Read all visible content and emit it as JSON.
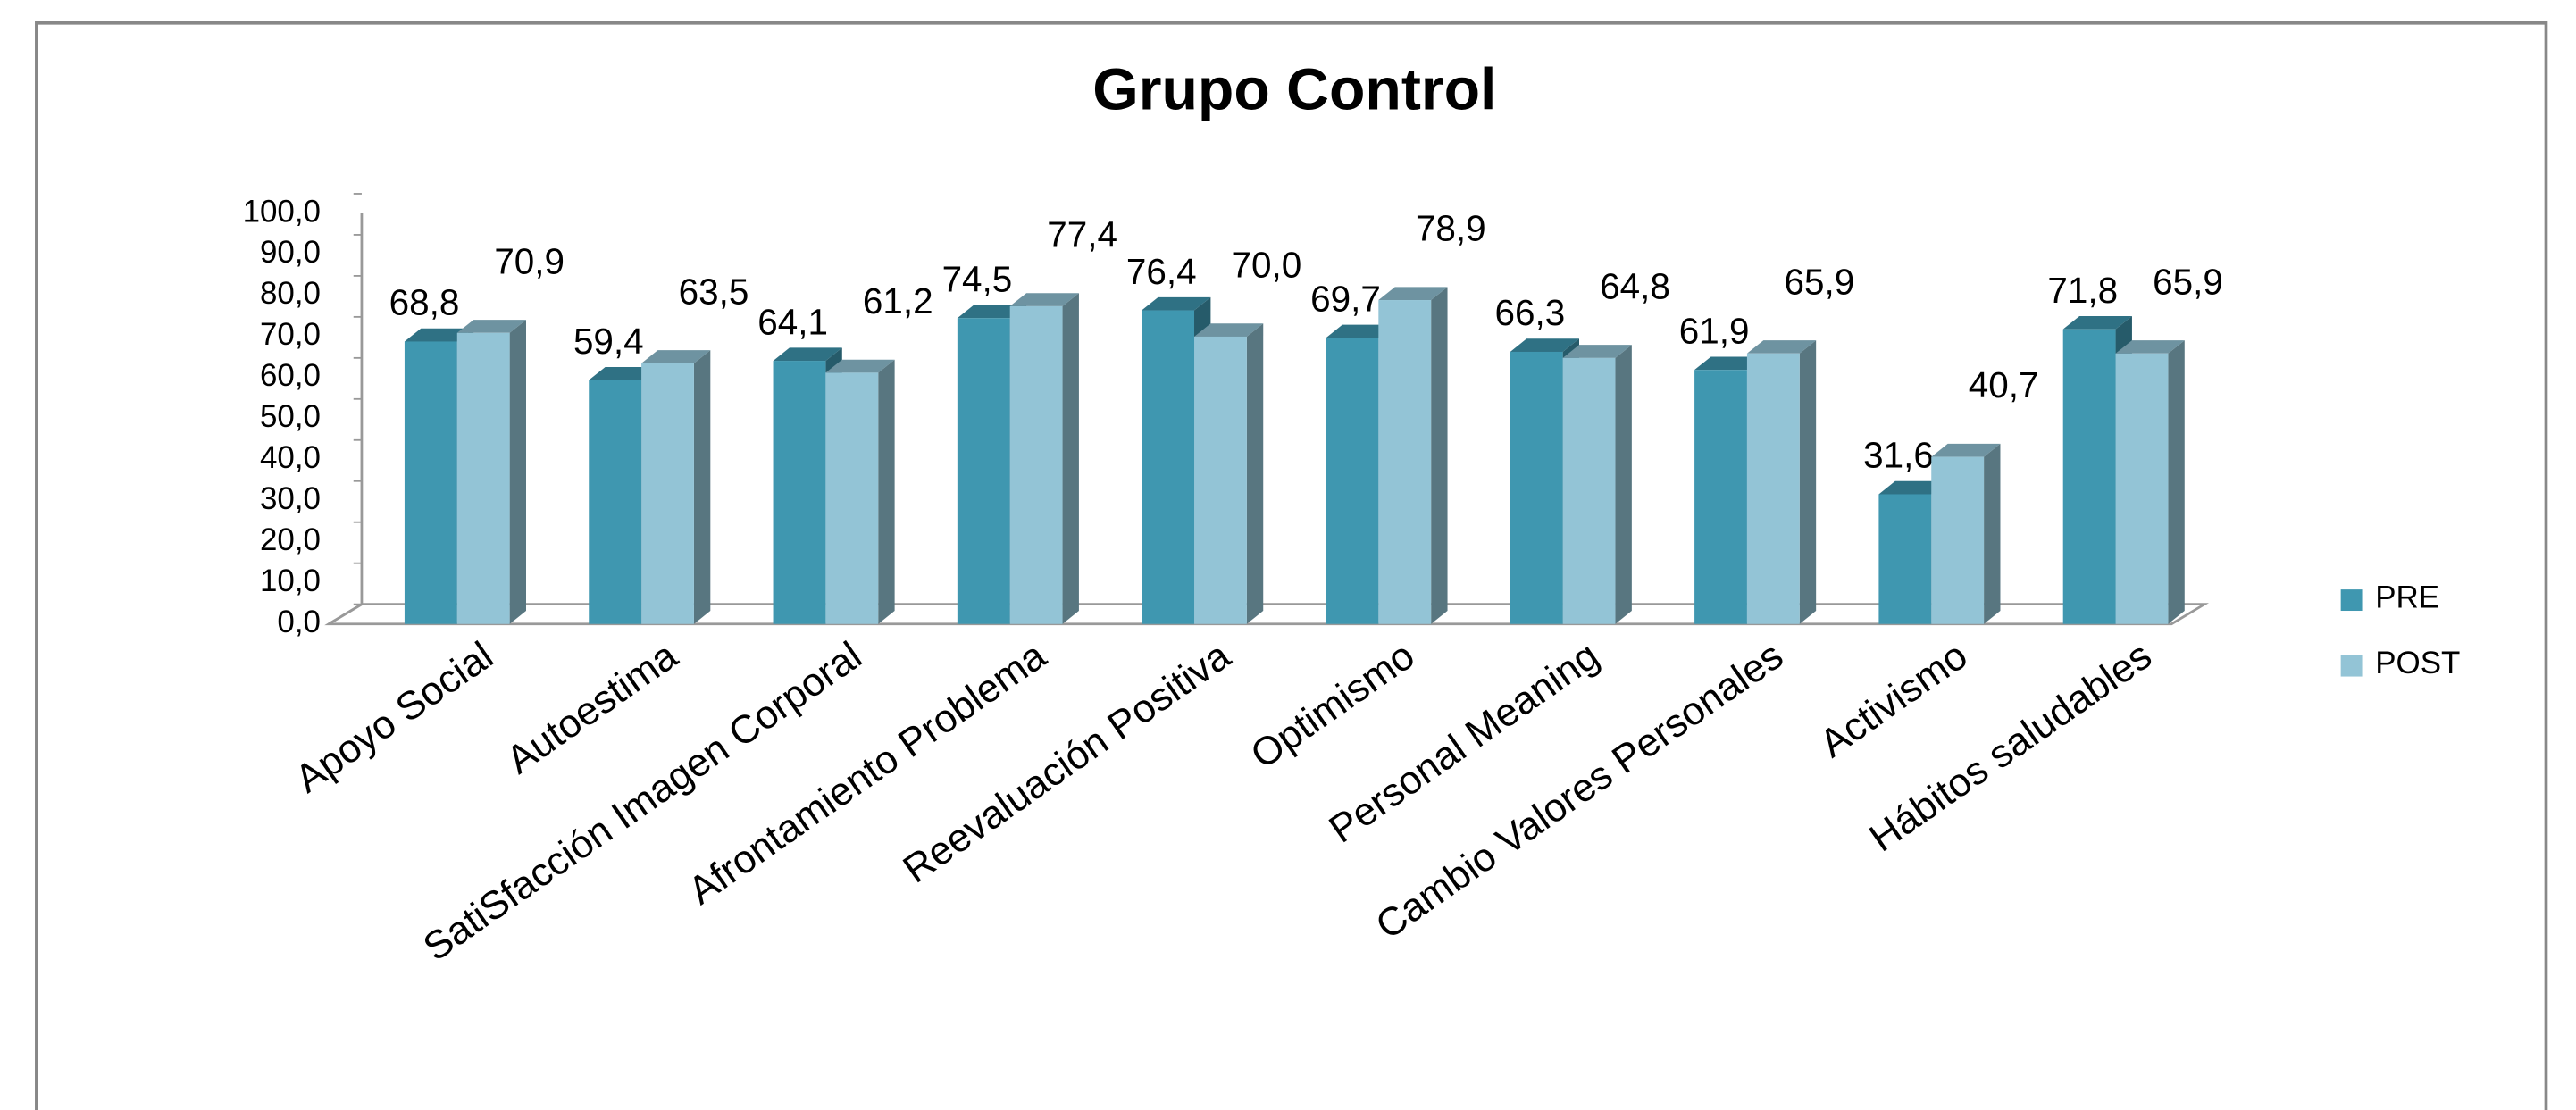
{
  "chart_data": {
    "type": "bar3d",
    "title": "Grupo Control",
    "categories": [
      "Apoyo Social",
      "Autoestima",
      "SatiSfacción Imagen Corporal",
      "Afrontamiento Problema",
      "Reevaluación Positiva",
      "Optimismo",
      "Personal Meaning",
      "Cambio Valores Personales",
      "Activismo",
      "Hábitos saludables"
    ],
    "series": [
      {
        "name": "PRE",
        "color": "#3f97b0",
        "values": [
          68.8,
          59.4,
          64.1,
          74.5,
          76.4,
          69.7,
          66.3,
          61.9,
          31.6,
          71.8
        ],
        "value_labels": [
          "68,8",
          "59,4",
          "64,1",
          "74,5",
          "76,4",
          "69,7",
          "66,3",
          "61,9",
          "31,6",
          "71,8"
        ]
      },
      {
        "name": "POST",
        "color": "#93c4d6",
        "values": [
          70.9,
          63.5,
          61.2,
          77.4,
          70.0,
          78.9,
          64.8,
          65.9,
          40.7,
          65.9
        ],
        "value_labels": [
          "70,9",
          "63,5",
          "61,2",
          "77,4",
          "70,0",
          "78,9",
          "64,8",
          "65,9",
          "40,7",
          "65,9"
        ]
      }
    ],
    "ylim": [
      0,
      100
    ],
    "yticks": [
      {
        "value": 0,
        "label": "0,0"
      },
      {
        "value": 10,
        "label": "10,0"
      },
      {
        "value": 20,
        "label": "20,0"
      },
      {
        "value": 30,
        "label": "30,0"
      },
      {
        "value": 40,
        "label": "40,0"
      },
      {
        "value": 50,
        "label": "50,0"
      },
      {
        "value": 60,
        "label": "60,0"
      },
      {
        "value": 70,
        "label": "70,0"
      },
      {
        "value": 80,
        "label": "80,0"
      },
      {
        "value": 90,
        "label": "90,0"
      },
      {
        "value": 100,
        "label": "100,0"
      }
    ],
    "legend": "right"
  }
}
